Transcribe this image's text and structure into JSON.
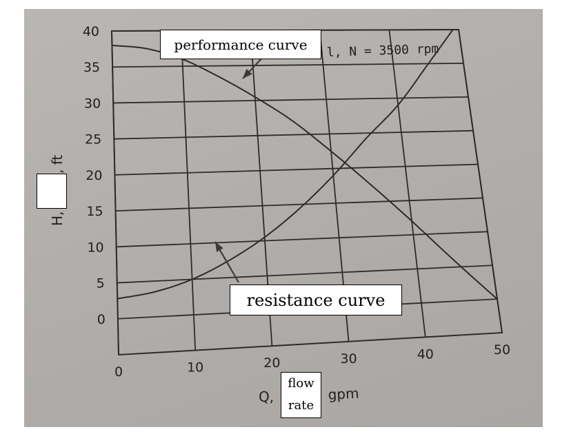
{
  "chart_data": {
    "type": "line",
    "x_ticks": [
      0,
      10,
      20,
      30,
      40,
      50
    ],
    "y_ticks": [
      0,
      5,
      10,
      15,
      20,
      25,
      30,
      35,
      40
    ],
    "xlim": [
      0,
      50
    ],
    "ylim": [
      -5,
      40
    ],
    "grid": true,
    "header_text": "l, N = 3500 rpm",
    "ylabel_visible": "H,",
    "ylabel_unit": ", ft",
    "xlabel_prefix": "Q,",
    "xlabel_suffix": "gpm",
    "series": [
      {
        "x": [
          0,
          5,
          10,
          15,
          20,
          25,
          30,
          35,
          40,
          45,
          50
        ],
        "y": [
          38,
          37.5,
          36,
          33.5,
          30.5,
          27,
          22.5,
          17.5,
          12,
          6,
          0
        ]
      },
      {
        "x": [
          0,
          5,
          10,
          15,
          20,
          25,
          30,
          35,
          40,
          45,
          50
        ],
        "y": [
          2.8,
          3.5,
          5,
          7.4,
          10.5,
          14.4,
          19,
          24.2,
          29,
          35,
          41
        ]
      }
    ],
    "annotations": [
      {
        "text": "performance curve",
        "points_to_series": 0
      },
      {
        "text": "resistance curve",
        "points_to_series": 1
      },
      {
        "text": "flow rate"
      }
    ],
    "colors": {
      "line": "#2b2b2b",
      "background": "#b3b0ad",
      "callout_bg": "#ffffff"
    }
  }
}
